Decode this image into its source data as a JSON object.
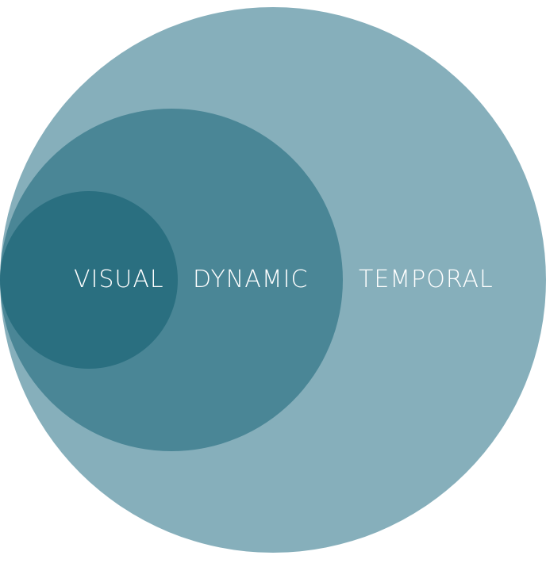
{
  "diagram": {
    "type": "nested-circles",
    "colors": {
      "outer": "#86afbb",
      "middle": "#4a8696",
      "inner": "#2a6f80",
      "label_text": "#ffffff",
      "background": "#ffffff"
    },
    "labels": {
      "outer": "TEMPORAL",
      "middle": "DYNAMIC",
      "inner": "VISUAL"
    }
  }
}
